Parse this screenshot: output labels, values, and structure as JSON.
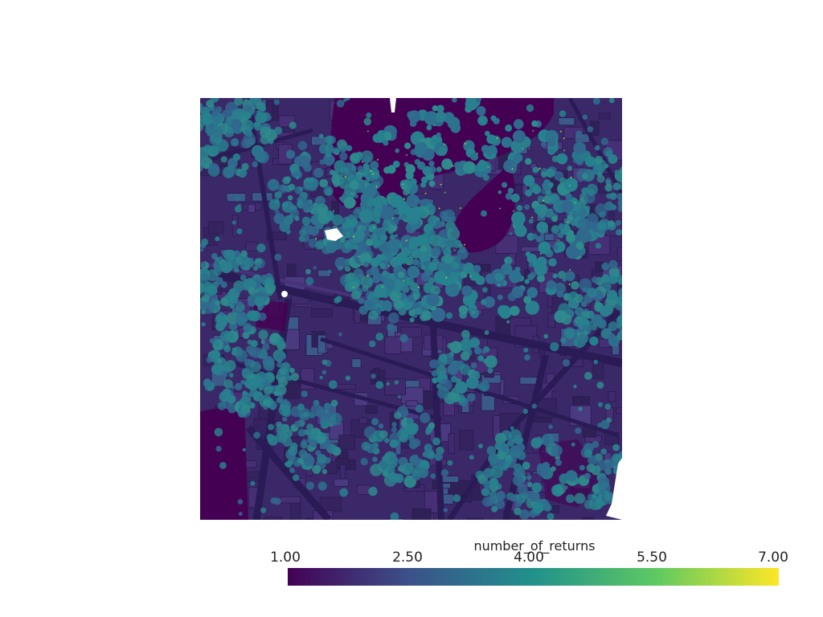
{
  "scalar_bar": {
    "title": "number_of_returns",
    "colormap": "viridis",
    "range": [
      1.0,
      7.0
    ],
    "tick_labels": [
      "1.00",
      "2.50",
      "4.00",
      "5.50",
      "7.00"
    ],
    "colors": [
      "#440154",
      "#3b528b",
      "#21918c",
      "#5ec962",
      "#fde725"
    ]
  },
  "scene": {
    "description_colors": {
      "background": "#ffffff",
      "ground": "#440154",
      "buildings": "#3e2a6b",
      "trees": "#2c8b8e",
      "highlights": "#b8de29"
    }
  }
}
